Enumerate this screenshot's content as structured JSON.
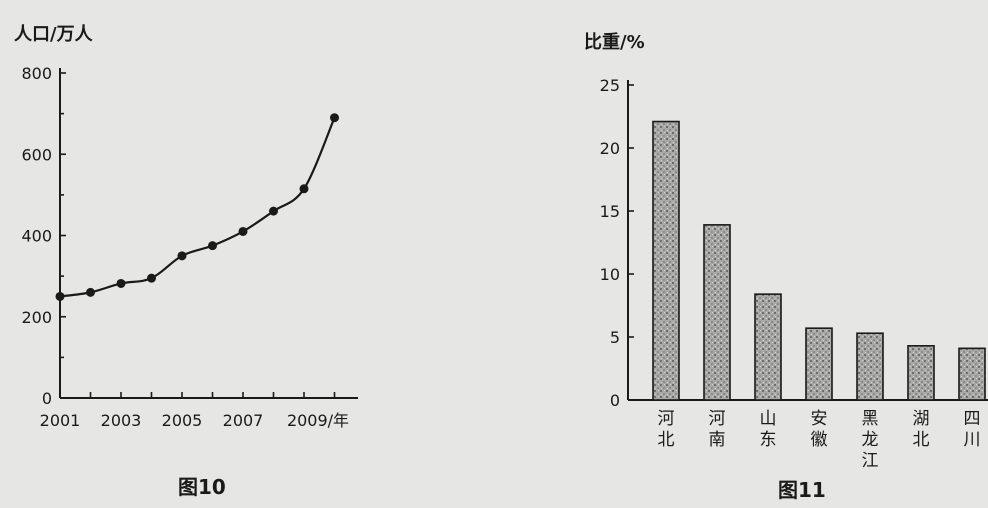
{
  "chart_data": [
    {
      "type": "line",
      "ylabel": "人口/万人",
      "xlabel": "年",
      "ylim": [
        0,
        800
      ],
      "yticks": [
        0,
        200,
        400,
        600,
        800
      ],
      "xlim": [
        2001,
        2010
      ],
      "xticks": [
        2001,
        2003,
        2005,
        2007,
        2009
      ],
      "x": [
        2001,
        2002,
        2003,
        2004,
        2005,
        2006,
        2007,
        2008,
        2009,
        2010
      ],
      "values": [
        250,
        260,
        282,
        295,
        350,
        375,
        410,
        460,
        515,
        690
      ],
      "caption": "图10"
    },
    {
      "type": "bar",
      "ylabel": "比重/%",
      "ylim": [
        0,
        25
      ],
      "yticks": [
        0,
        5,
        10,
        15,
        20,
        25
      ],
      "categories": [
        "河北",
        "河南",
        "山东",
        "安徽",
        "黑龙江",
        "湖北",
        "四川"
      ],
      "values": [
        22.1,
        13.9,
        8.4,
        5.7,
        5.3,
        4.3,
        4.1
      ],
      "caption": "图11"
    }
  ]
}
